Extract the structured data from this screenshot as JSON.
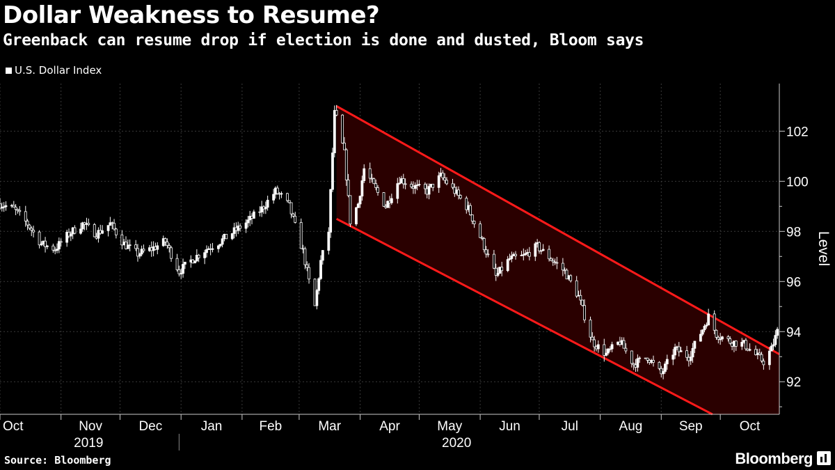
{
  "header": {
    "title": "Dollar Weakness to Resume?",
    "subtitle": "Greenback can resume drop if election is done and dusted, Bloom says"
  },
  "footer": {
    "source": "Source: Bloomberg",
    "brand": "Bloomberg"
  },
  "chart_data": {
    "type": "candlestick",
    "title": "Dollar Weakness to Resume?",
    "subtitle": "Greenback can resume drop if election is done and dusted, Bloom says",
    "ylabel": "Level",
    "xlabel": "",
    "ylim": [
      90.7,
      103.9
    ],
    "yticks": [
      92,
      94,
      96,
      98,
      100,
      102
    ],
    "x_range": [
      "2019-10-01",
      "2020-10-31"
    ],
    "month_ticks": [
      {
        "label": "Oct",
        "date": "2019-10-01"
      },
      {
        "label": "Nov",
        "date": "2019-11-01"
      },
      {
        "label": "Dec",
        "date": "2019-12-01"
      },
      {
        "label": "Jan",
        "date": "2020-01-01"
      },
      {
        "label": "Feb",
        "date": "2020-02-01"
      },
      {
        "label": "Mar",
        "date": "2020-03-01"
      },
      {
        "label": "Apr",
        "date": "2020-04-01"
      },
      {
        "label": "May",
        "date": "2020-05-01"
      },
      {
        "label": "Jun",
        "date": "2020-06-01"
      },
      {
        "label": "Jul",
        "date": "2020-07-01"
      },
      {
        "label": "Aug",
        "date": "2020-08-01"
      },
      {
        "label": "Sep",
        "date": "2020-09-01"
      },
      {
        "label": "Oct",
        "date": "2020-10-01"
      }
    ],
    "year_labels": [
      {
        "label": "2019",
        "date": "2019-11-15"
      },
      {
        "label": "2020",
        "date": "2020-05-20"
      }
    ],
    "year_divider": "2019-12-31",
    "legend": {
      "position": "top-left",
      "entries": [
        "U.S. Dollar Index"
      ]
    },
    "series": [
      {
        "name": "U.S. Dollar Index",
        "color": "#ffffff",
        "points": [
          [
            "2019-10-01",
            99.1
          ],
          [
            "2019-10-08",
            98.9
          ],
          [
            "2019-10-15",
            98.3
          ],
          [
            "2019-10-22",
            97.5
          ],
          [
            "2019-10-29",
            97.3
          ],
          [
            "2019-11-05",
            97.9
          ],
          [
            "2019-11-12",
            98.3
          ],
          [
            "2019-11-19",
            97.9
          ],
          [
            "2019-11-26",
            98.3
          ],
          [
            "2019-12-03",
            97.5
          ],
          [
            "2019-12-10",
            97.1
          ],
          [
            "2019-12-17",
            97.3
          ],
          [
            "2019-12-24",
            97.6
          ],
          [
            "2019-12-31",
            96.4
          ],
          [
            "2020-01-07",
            96.9
          ],
          [
            "2020-01-14",
            97.3
          ],
          [
            "2020-01-21",
            97.6
          ],
          [
            "2020-01-28",
            98.0
          ],
          [
            "2020-02-04",
            98.4
          ],
          [
            "2020-02-11",
            98.9
          ],
          [
            "2020-02-18",
            99.6
          ],
          [
            "2020-02-21",
            99.4
          ],
          [
            "2020-02-25",
            99.0
          ],
          [
            "2020-02-28",
            98.2
          ],
          [
            "2020-03-03",
            97.2
          ],
          [
            "2020-03-06",
            96.0
          ],
          [
            "2020-03-09",
            95.0
          ],
          [
            "2020-03-12",
            96.8
          ],
          [
            "2020-03-16",
            98.0
          ],
          [
            "2020-03-19",
            102.7
          ],
          [
            "2020-03-20",
            102.5
          ],
          [
            "2020-03-24",
            101.1
          ],
          [
            "2020-03-27",
            98.4
          ],
          [
            "2020-03-31",
            99.1
          ],
          [
            "2020-04-03",
            100.5
          ],
          [
            "2020-04-08",
            99.8
          ],
          [
            "2020-04-14",
            99.0
          ],
          [
            "2020-04-21",
            100.1
          ],
          [
            "2020-04-28",
            99.8
          ],
          [
            "2020-05-05",
            99.6
          ],
          [
            "2020-05-12",
            100.2
          ],
          [
            "2020-05-19",
            99.6
          ],
          [
            "2020-05-26",
            98.9
          ],
          [
            "2020-06-02",
            97.6
          ],
          [
            "2020-06-09",
            96.2
          ],
          [
            "2020-06-16",
            96.9
          ],
          [
            "2020-06-23",
            97.0
          ],
          [
            "2020-06-30",
            97.4
          ],
          [
            "2020-07-07",
            96.9
          ],
          [
            "2020-07-14",
            96.4
          ],
          [
            "2020-07-21",
            95.4
          ],
          [
            "2020-07-28",
            93.6
          ],
          [
            "2020-08-04",
            93.1
          ],
          [
            "2020-08-11",
            93.6
          ],
          [
            "2020-08-18",
            92.7
          ],
          [
            "2020-08-25",
            93.0
          ],
          [
            "2020-09-01",
            92.3
          ],
          [
            "2020-09-08",
            93.3
          ],
          [
            "2020-09-15",
            93.0
          ],
          [
            "2020-09-22",
            94.1
          ],
          [
            "2020-09-25",
            94.6
          ],
          [
            "2020-09-29",
            93.9
          ],
          [
            "2020-10-06",
            93.6
          ],
          [
            "2020-10-13",
            93.5
          ],
          [
            "2020-10-20",
            93.0
          ],
          [
            "2020-10-23",
            92.8
          ],
          [
            "2020-10-27",
            93.3
          ],
          [
            "2020-10-30",
            94.0
          ]
        ]
      }
    ],
    "channel": {
      "color": "#ff1a1a",
      "fill": "#2a0000",
      "upper": [
        [
          "2020-03-20",
          103.0
        ],
        [
          "2020-10-31",
          93.1
        ]
      ],
      "lower": [
        [
          "2020-03-20",
          98.5
        ],
        [
          "2020-09-27",
          90.7
        ]
      ]
    }
  }
}
